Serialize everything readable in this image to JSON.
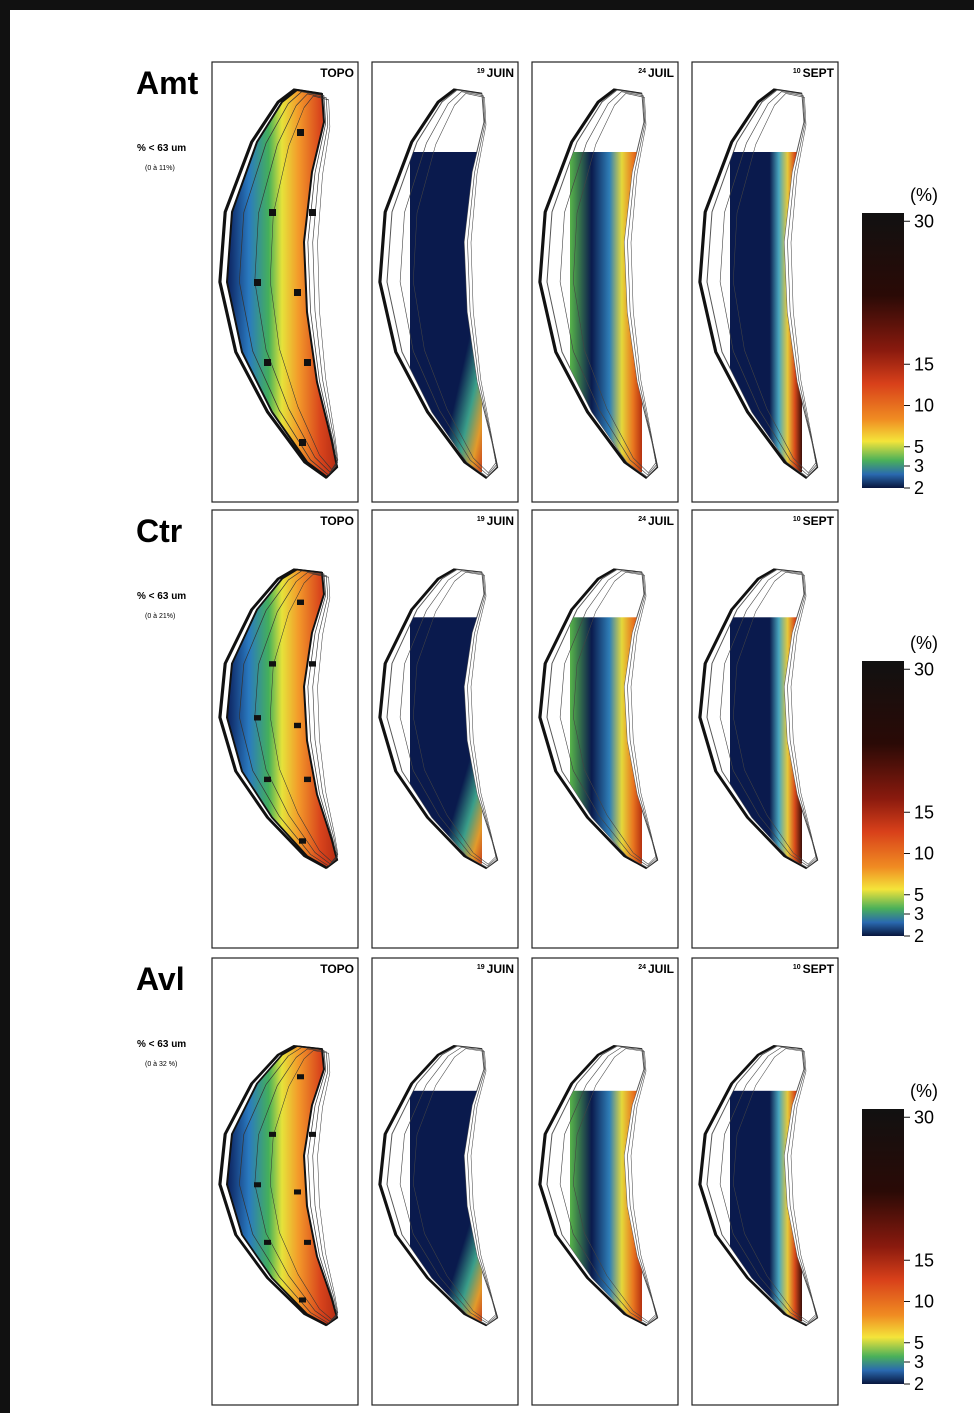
{
  "rows": [
    {
      "label": "Amt",
      "fraction": "% < 63 um",
      "range": "(0 à 11%)",
      "panels": [
        {
          "title": "TOPO"
        },
        {
          "day": "19",
          "title": "JUIN"
        },
        {
          "day": "24",
          "title": "JUIL"
        },
        {
          "day": "10",
          "title": "SEPT"
        }
      ],
      "colorbar": {
        "title": "(%)",
        "ticks": [
          30,
          15,
          10,
          5,
          3,
          2
        ]
      }
    },
    {
      "label": "Ctr",
      "fraction": "% < 63 um",
      "range": "(0 à 21%)",
      "panels": [
        {
          "title": "TOPO"
        },
        {
          "day": "19",
          "title": "JUIN"
        },
        {
          "day": "24",
          "title": "JUIL"
        },
        {
          "day": "10",
          "title": "SEPT"
        }
      ],
      "colorbar": {
        "title": "(%)",
        "ticks": [
          30,
          15,
          10,
          5,
          3,
          2
        ]
      }
    },
    {
      "label": "Avl",
      "fraction": "% < 63 um",
      "range": "(0 à 32 %)",
      "panels": [
        {
          "title": "TOPO"
        },
        {
          "day": "19",
          "title": "JUIN"
        },
        {
          "day": "24",
          "title": "JUIL"
        },
        {
          "day": "10",
          "title": "SEPT"
        }
      ],
      "colorbar": {
        "title": "(%)",
        "ticks": [
          30,
          15,
          10,
          5,
          3,
          2
        ]
      }
    }
  ]
}
